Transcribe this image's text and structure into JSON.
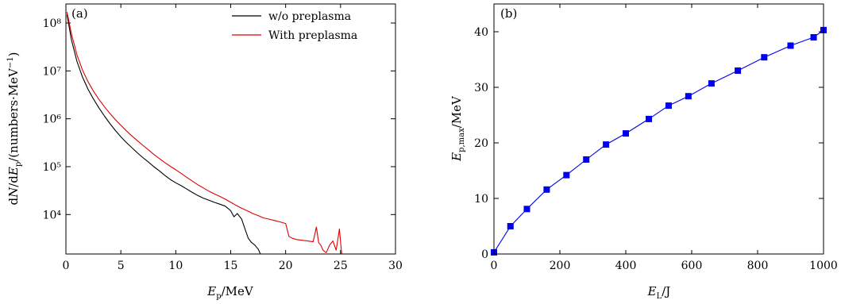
{
  "chart_data": [
    {
      "type": "line",
      "panel_label": "(a)",
      "xlabel": "E_p/MeV",
      "ylabel": "dN/dE_p/(numbers·MeV⁻¹)",
      "xlim": [
        0,
        30
      ],
      "ylim": [
        1500,
        250000000
      ],
      "yscale": "log",
      "x_ticks": [
        0,
        5,
        10,
        15,
        20,
        25,
        30
      ],
      "y_ticks": [
        10000,
        100000,
        1000000,
        10000000,
        100000000
      ],
      "y_tick_labels": [
        "10⁴",
        "10⁵",
        "10⁶",
        "10⁷",
        "10⁸"
      ],
      "legend_position": "top-right",
      "series": [
        {
          "name": "w/o preplasma",
          "color": "#000000",
          "x": [
            0.1,
            0.5,
            1,
            1.5,
            2,
            2.5,
            3,
            3.5,
            4,
            4.5,
            5,
            5.5,
            6,
            6.5,
            7,
            7.5,
            8,
            8.5,
            9,
            9.5,
            10,
            10.5,
            11,
            11.5,
            12,
            12.5,
            13,
            13.5,
            14,
            14.5,
            15,
            15.3,
            15.6,
            16,
            16.3,
            16.6,
            16.9,
            17.2,
            17.5,
            17.7
          ],
          "y": [
            150000000,
            45000000,
            16000000,
            7500000,
            4200000,
            2600000,
            1700000,
            1150000,
            800000,
            570000,
            420000,
            320000,
            250000,
            195000,
            155000,
            125000,
            100000,
            82000,
            66000,
            54000,
            46000,
            40000,
            34000,
            29000,
            25000,
            22000,
            20000,
            18000,
            16500,
            15000,
            12000,
            9000,
            10500,
            8000,
            5000,
            3200,
            2600,
            2300,
            1900,
            1500
          ]
        },
        {
          "name": "With preplasma",
          "color": "#e00000",
          "x": [
            0.1,
            0.5,
            1,
            1.5,
            2,
            2.5,
            3,
            3.5,
            4,
            4.5,
            5,
            5.5,
            6,
            6.5,
            7,
            7.5,
            8,
            8.5,
            9,
            9.5,
            10,
            10.5,
            11,
            11.5,
            12,
            12.5,
            13,
            13.5,
            14,
            14.5,
            15,
            15.5,
            16,
            16.5,
            17,
            17.5,
            18,
            18.5,
            19,
            19.5,
            20,
            20.3,
            20.6,
            21,
            21.5,
            22,
            22.5,
            22.8,
            23,
            23.2,
            23.4,
            23.7,
            24,
            24.3,
            24.6,
            24.9,
            25.1
          ],
          "y": [
            170000000,
            60000000,
            22000000,
            10500000,
            6000000,
            3800000,
            2550000,
            1800000,
            1300000,
            960000,
            730000,
            560000,
            440000,
            350000,
            280000,
            225000,
            180000,
            148000,
            122000,
            102000,
            86000,
            72000,
            60000,
            50000,
            42000,
            36000,
            31000,
            27000,
            24000,
            21000,
            18000,
            15500,
            13500,
            12000,
            10500,
            9500,
            8500,
            8000,
            7500,
            7000,
            6500,
            3500,
            3200,
            3000,
            2900,
            2800,
            2700,
            5500,
            2600,
            2300,
            1800,
            1600,
            2300,
            2800,
            1800,
            5000,
            1500
          ]
        }
      ]
    },
    {
      "type": "line",
      "panel_label": "(b)",
      "xlabel": "E_L/J",
      "ylabel": "E_p,max/MeV",
      "xlim": [
        0,
        1000
      ],
      "ylim": [
        0,
        45
      ],
      "x_ticks": [
        0,
        200,
        400,
        600,
        800,
        1000
      ],
      "y_ticks": [
        0,
        10,
        20,
        30,
        40
      ],
      "marker": "square",
      "series": [
        {
          "color": "#0000ee",
          "x": [
            0,
            50,
            100,
            160,
            220,
            280,
            340,
            400,
            470,
            530,
            590,
            660,
            740,
            820,
            900,
            970,
            1000
          ],
          "y": [
            0.3,
            5,
            8.1,
            11.6,
            14.2,
            17,
            19.7,
            21.7,
            24.3,
            26.7,
            28.4,
            30.7,
            33,
            35.4,
            37.5,
            39,
            40.3
          ]
        }
      ]
    }
  ]
}
